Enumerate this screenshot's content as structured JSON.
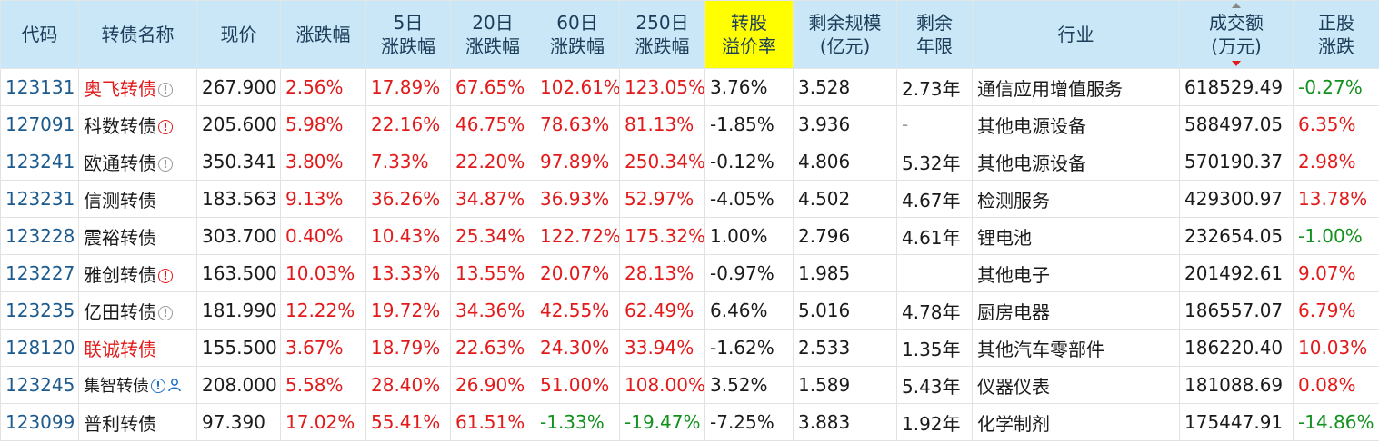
{
  "headers": {
    "code": "代码",
    "name": "转债名称",
    "price": "现价",
    "chg": "涨跌幅",
    "chg5_a": "5日",
    "chg5_b": "涨跌幅",
    "chg20_a": "20日",
    "chg20_b": "涨跌幅",
    "chg60_a": "60日",
    "chg60_b": "涨跌幅",
    "chg250_a": "250日",
    "chg250_b": "涨跌幅",
    "premium_a": "转股",
    "premium_b": "溢价率",
    "scale_a": "剩余规模",
    "scale_b": "(亿元)",
    "years_a": "剩余",
    "years_b": "年限",
    "industry": "行业",
    "volume_a": "成交额",
    "volume_b": "(万元)",
    "stock_a": "正股",
    "stock_b": "涨跌"
  },
  "colors": {
    "header_bg": "#c9e7f7",
    "highlight": "#ffff00",
    "up": "#e21a1a",
    "down": "#12911e",
    "code": "#1d5b8e"
  },
  "rows": [
    {
      "code": "123131",
      "name": "奥飞转债",
      "name_red": true,
      "icons": [
        "info-grey"
      ],
      "price": "267.900",
      "chg": "2.56%",
      "chg5": "17.89%",
      "chg20": "67.65%",
      "chg60": "102.61%",
      "chg250": "123.05%",
      "premium": "3.76%",
      "scale": "3.528",
      "years": "2.73年",
      "industry": "通信应用增值服务",
      "volume": "618529.49",
      "stock": "-0.27%"
    },
    {
      "code": "127091",
      "name": "科数转债",
      "name_red": false,
      "icons": [
        "info-red"
      ],
      "price": "205.600",
      "chg": "5.98%",
      "chg5": "22.16%",
      "chg20": "46.75%",
      "chg60": "78.63%",
      "chg250": "81.13%",
      "premium": "-1.85%",
      "scale": "3.936",
      "years": "-",
      "industry": "其他电源设备",
      "volume": "588497.05",
      "stock": "6.35%"
    },
    {
      "code": "123241",
      "name": "欧通转债",
      "name_red": false,
      "icons": [
        "info-grey"
      ],
      "price": "350.341",
      "chg": "3.80%",
      "chg5": "7.33%",
      "chg20": "22.20%",
      "chg60": "97.89%",
      "chg250": "250.34%",
      "premium": "-0.12%",
      "scale": "4.806",
      "years": "5.32年",
      "industry": "其他电源设备",
      "volume": "570190.37",
      "stock": "2.98%"
    },
    {
      "code": "123231",
      "name": "信测转债",
      "name_red": false,
      "icons": [],
      "price": "183.563",
      "chg": "9.13%",
      "chg5": "36.26%",
      "chg20": "34.87%",
      "chg60": "36.93%",
      "chg250": "52.97%",
      "premium": "-4.05%",
      "scale": "4.502",
      "years": "4.67年",
      "industry": "检测服务",
      "volume": "429300.97",
      "stock": "13.78%"
    },
    {
      "code": "123228",
      "name": "震裕转债",
      "name_red": false,
      "icons": [],
      "price": "303.700",
      "chg": "0.40%",
      "chg5": "10.43%",
      "chg20": "25.34%",
      "chg60": "122.72%",
      "chg250": "175.32%",
      "premium": "1.00%",
      "scale": "2.796",
      "years": "4.61年",
      "industry": "锂电池",
      "volume": "232654.05",
      "stock": "-1.00%"
    },
    {
      "code": "123227",
      "name": "雅创转债",
      "name_red": false,
      "icons": [
        "info-red"
      ],
      "price": "163.500",
      "chg": "10.03%",
      "chg5": "13.33%",
      "chg20": "13.55%",
      "chg60": "20.07%",
      "chg250": "28.13%",
      "premium": "-0.97%",
      "scale": "1.985",
      "years": "",
      "industry": "其他电子",
      "volume": "201492.61",
      "stock": "9.07%"
    },
    {
      "code": "123235",
      "name": "亿田转债",
      "name_red": false,
      "icons": [
        "info-grey"
      ],
      "price": "181.990",
      "chg": "12.22%",
      "chg5": "19.72%",
      "chg20": "34.36%",
      "chg60": "42.55%",
      "chg250": "62.49%",
      "premium": "6.46%",
      "scale": "5.016",
      "years": "4.78年",
      "industry": "厨房电器",
      "volume": "186557.07",
      "stock": "6.79%"
    },
    {
      "code": "128120",
      "name": "联诚转债",
      "name_red": true,
      "icons": [],
      "price": "155.500",
      "chg": "3.67%",
      "chg5": "18.79%",
      "chg20": "22.63%",
      "chg60": "24.30%",
      "chg250": "33.94%",
      "premium": "-1.62%",
      "scale": "2.533",
      "years": "1.35年",
      "industry": "其他汽车零部件",
      "volume": "186220.40",
      "stock": "10.03%"
    },
    {
      "code": "123245",
      "name": "集智转债",
      "name_red": false,
      "small": true,
      "icons": [
        "info-blue",
        "person-blue"
      ],
      "price": "208.000",
      "chg": "5.58%",
      "chg5": "28.40%",
      "chg20": "26.90%",
      "chg60": "51.00%",
      "chg250": "108.00%",
      "premium": "3.52%",
      "scale": "1.589",
      "years": "5.43年",
      "industry": "仪器仪表",
      "volume": "181088.69",
      "stock": "0.08%"
    },
    {
      "code": "123099",
      "name": "普利转债",
      "name_red": false,
      "icons": [],
      "price": "97.390",
      "chg": "17.02%",
      "chg5": "55.41%",
      "chg20": "61.51%",
      "chg60": "-1.33%",
      "chg250": "-19.47%",
      "premium": "-7.25%",
      "scale": "3.883",
      "years": "1.92年",
      "industry": "化学制剂",
      "volume": "175447.91",
      "stock": "-14.86%"
    }
  ]
}
